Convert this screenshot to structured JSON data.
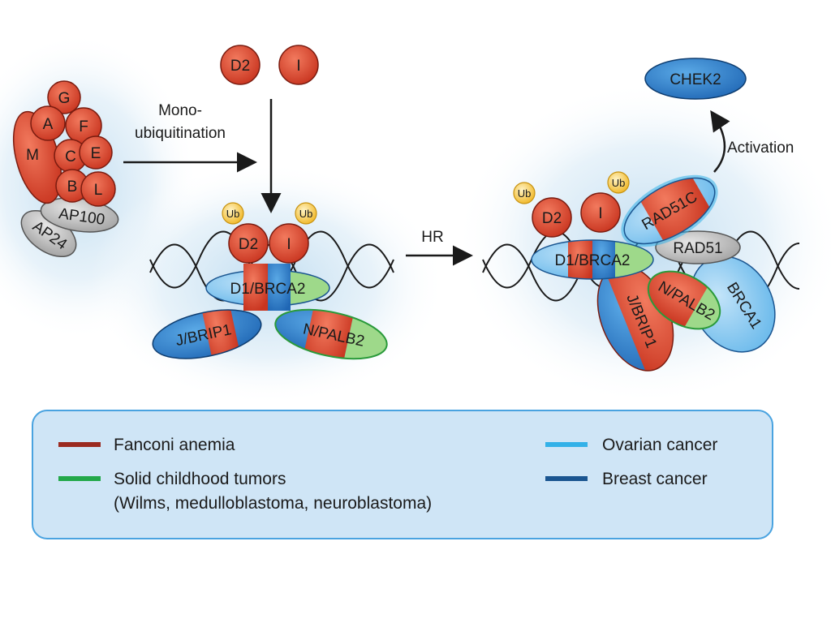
{
  "proteins": {
    "core_complex": {
      "G": "G",
      "A": "A",
      "F": "F",
      "M": "M",
      "C": "C",
      "E": "E",
      "B": "B",
      "L": "L",
      "AP100": "AP100",
      "AP24": "AP24"
    },
    "free_d2": "D2",
    "free_i": "I",
    "mid": {
      "d2": "D2",
      "i": "I",
      "d1_brca2": "D1/BRCA2",
      "j_brip1": "J/BRIP1",
      "n_palb2": "N/PALB2",
      "ub": "Ub"
    },
    "right": {
      "d2": "D2",
      "i": "I",
      "d1_brca2": "D1/BRCA2",
      "rad51c": "RAD51C",
      "rad51": "RAD51",
      "n_palb2": "N/PALB2",
      "j_brip1": "J/BRIP1",
      "brca1": "BRCA1",
      "chek2": "CHEK2",
      "ub": "Ub"
    }
  },
  "arrows": {
    "monoubiquitination": [
      "Mono-",
      "ubiquitination"
    ],
    "hr": "HR",
    "activation": "Activation"
  },
  "legend": {
    "fanconi": {
      "label": "Fanconi anemia",
      "color": "#9b2a20"
    },
    "solid_line1": "Solid childhood tumors",
    "solid_line2": "(Wilms, medulloblastoma, neuroblastoma)",
    "solid_color": "#23a84a",
    "ovarian": {
      "label": "Ovarian cancer",
      "color": "#33b1e8"
    },
    "breast": {
      "label": "Breast cancer",
      "color": "#1a5590"
    }
  },
  "colors": {
    "red": "#d84a32",
    "blue": "#2a7fcb",
    "lightblue": "#5fb6ec",
    "green": "#8fd17a",
    "gray": "#bdbdbd",
    "ub_yellow": "#f3c233"
  }
}
